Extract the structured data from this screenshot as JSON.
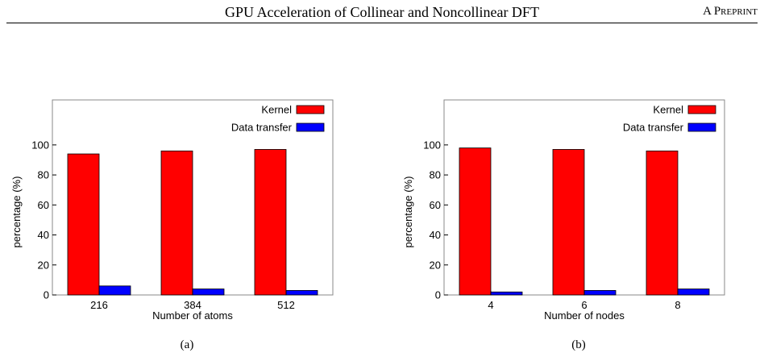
{
  "header": {
    "title": "GPU Acceleration of Collinear and Noncollinear DFT",
    "right_label": "A Preprint"
  },
  "colors": {
    "kernel": "#ff0000",
    "data_transfer": "#0000ff"
  },
  "chart_data": [
    {
      "type": "bar",
      "caption": "(a)",
      "xlabel": "Number of atoms",
      "ylabel": "percentage (%)",
      "categories": [
        "216",
        "384",
        "512"
      ],
      "ylim": [
        0,
        130
      ],
      "yticks": [
        0,
        20,
        40,
        60,
        80,
        100
      ],
      "grid": false,
      "legend_position": "top-right",
      "series": [
        {
          "name": "Kernel",
          "color": "#ff0000",
          "values": [
            94,
            96,
            97
          ]
        },
        {
          "name": "Data transfer",
          "color": "#0000ff",
          "values": [
            6,
            4,
            3
          ]
        }
      ]
    },
    {
      "type": "bar",
      "caption": "(b)",
      "xlabel": "Number of nodes",
      "ylabel": "percentage (%)",
      "categories": [
        "4",
        "6",
        "8"
      ],
      "ylim": [
        0,
        130
      ],
      "yticks": [
        0,
        20,
        40,
        60,
        80,
        100
      ],
      "grid": false,
      "legend_position": "top-right",
      "series": [
        {
          "name": "Kernel",
          "color": "#ff0000",
          "values": [
            98,
            97,
            96
          ]
        },
        {
          "name": "Data transfer",
          "color": "#0000ff",
          "values": [
            2,
            3,
            4
          ]
        }
      ]
    }
  ]
}
